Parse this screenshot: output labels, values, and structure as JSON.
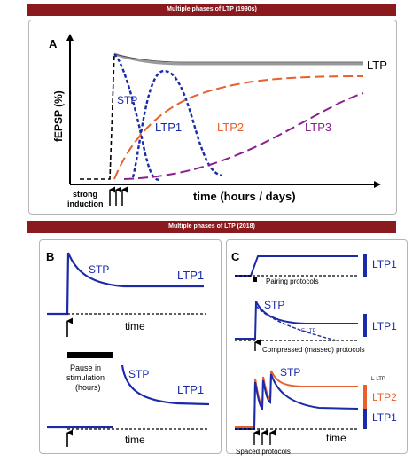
{
  "banner_top": "Multiple phases of LTP (1990s)",
  "banner_bottom": "Multiple phases of LTP (2018)",
  "panel_a": {
    "letter": "A",
    "ylabel": "fEPSP (%)",
    "xlabel": "time (hours / days)",
    "induction": [
      "strong",
      "induction"
    ],
    "labels": {
      "ltp": "LTP",
      "stp": "STP",
      "ltp1": "LTP1",
      "ltp2": "LTP2",
      "ltp3": "LTP3"
    }
  },
  "panel_b": {
    "letter": "B",
    "stp": "STP",
    "ltp1": "LTP1",
    "time": "time",
    "pause": [
      "Pause in",
      "stimulation",
      "(hours)"
    ],
    "stp2": "STP",
    "ltp1_2": "LTP1",
    "time2": "time"
  },
  "panel_c": {
    "letter": "C",
    "ltp1_a": "LTP1",
    "pairing": "Pairing protocols",
    "stp": "STP",
    "eltp": "E-LTP",
    "ltp1_b": "LTP1",
    "compressed": "Compressed (massed)  protocols",
    "stp2": "STP",
    "lltp": "L-LTP",
    "ltp2": "LTP2",
    "ltp1_c": "LTP1",
    "time": "time",
    "spaced": "Spaced protocols"
  },
  "colors": {
    "accent": "#8b1a1f",
    "blue": "#1a2aa8",
    "orange": "#e8602c",
    "purple": "#8a2090",
    "gray": "#9a9a9a"
  }
}
